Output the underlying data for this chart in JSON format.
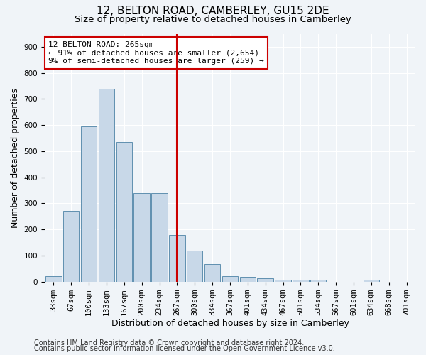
{
  "title": "12, BELTON ROAD, CAMBERLEY, GU15 2DE",
  "subtitle": "Size of property relative to detached houses in Camberley",
  "xlabel": "Distribution of detached houses by size in Camberley",
  "ylabel": "Number of detached properties",
  "bar_labels": [
    "33sqm",
    "67sqm",
    "100sqm",
    "133sqm",
    "167sqm",
    "200sqm",
    "234sqm",
    "267sqm",
    "300sqm",
    "334sqm",
    "367sqm",
    "401sqm",
    "434sqm",
    "467sqm",
    "501sqm",
    "534sqm",
    "567sqm",
    "601sqm",
    "634sqm",
    "668sqm",
    "701sqm"
  ],
  "bar_values": [
    20,
    270,
    595,
    740,
    535,
    340,
    340,
    178,
    118,
    68,
    22,
    18,
    12,
    8,
    8,
    7,
    0,
    0,
    8,
    0,
    0
  ],
  "bar_color": "#c8d8e8",
  "bar_edge_color": "#6090b0",
  "vline_x_idx": 7,
  "vline_color": "#cc0000",
  "annotation_text": "12 BELTON ROAD: 265sqm\n← 91% of detached houses are smaller (2,654)\n9% of semi-detached houses are larger (259) →",
  "annotation_box_color": "#ffffff",
  "annotation_box_edge": "#cc0000",
  "ylim": [
    0,
    950
  ],
  "yticks": [
    0,
    100,
    200,
    300,
    400,
    500,
    600,
    700,
    800,
    900
  ],
  "footer1": "Contains HM Land Registry data © Crown copyright and database right 2024.",
  "footer2": "Contains public sector information licensed under the Open Government Licence v3.0.",
  "background_color": "#f0f4f8",
  "plot_bg_color": "#f0f4f8",
  "title_fontsize": 11,
  "subtitle_fontsize": 9.5,
  "axis_label_fontsize": 9,
  "tick_fontsize": 7.5,
  "annotation_fontsize": 8,
  "footer_fontsize": 7
}
